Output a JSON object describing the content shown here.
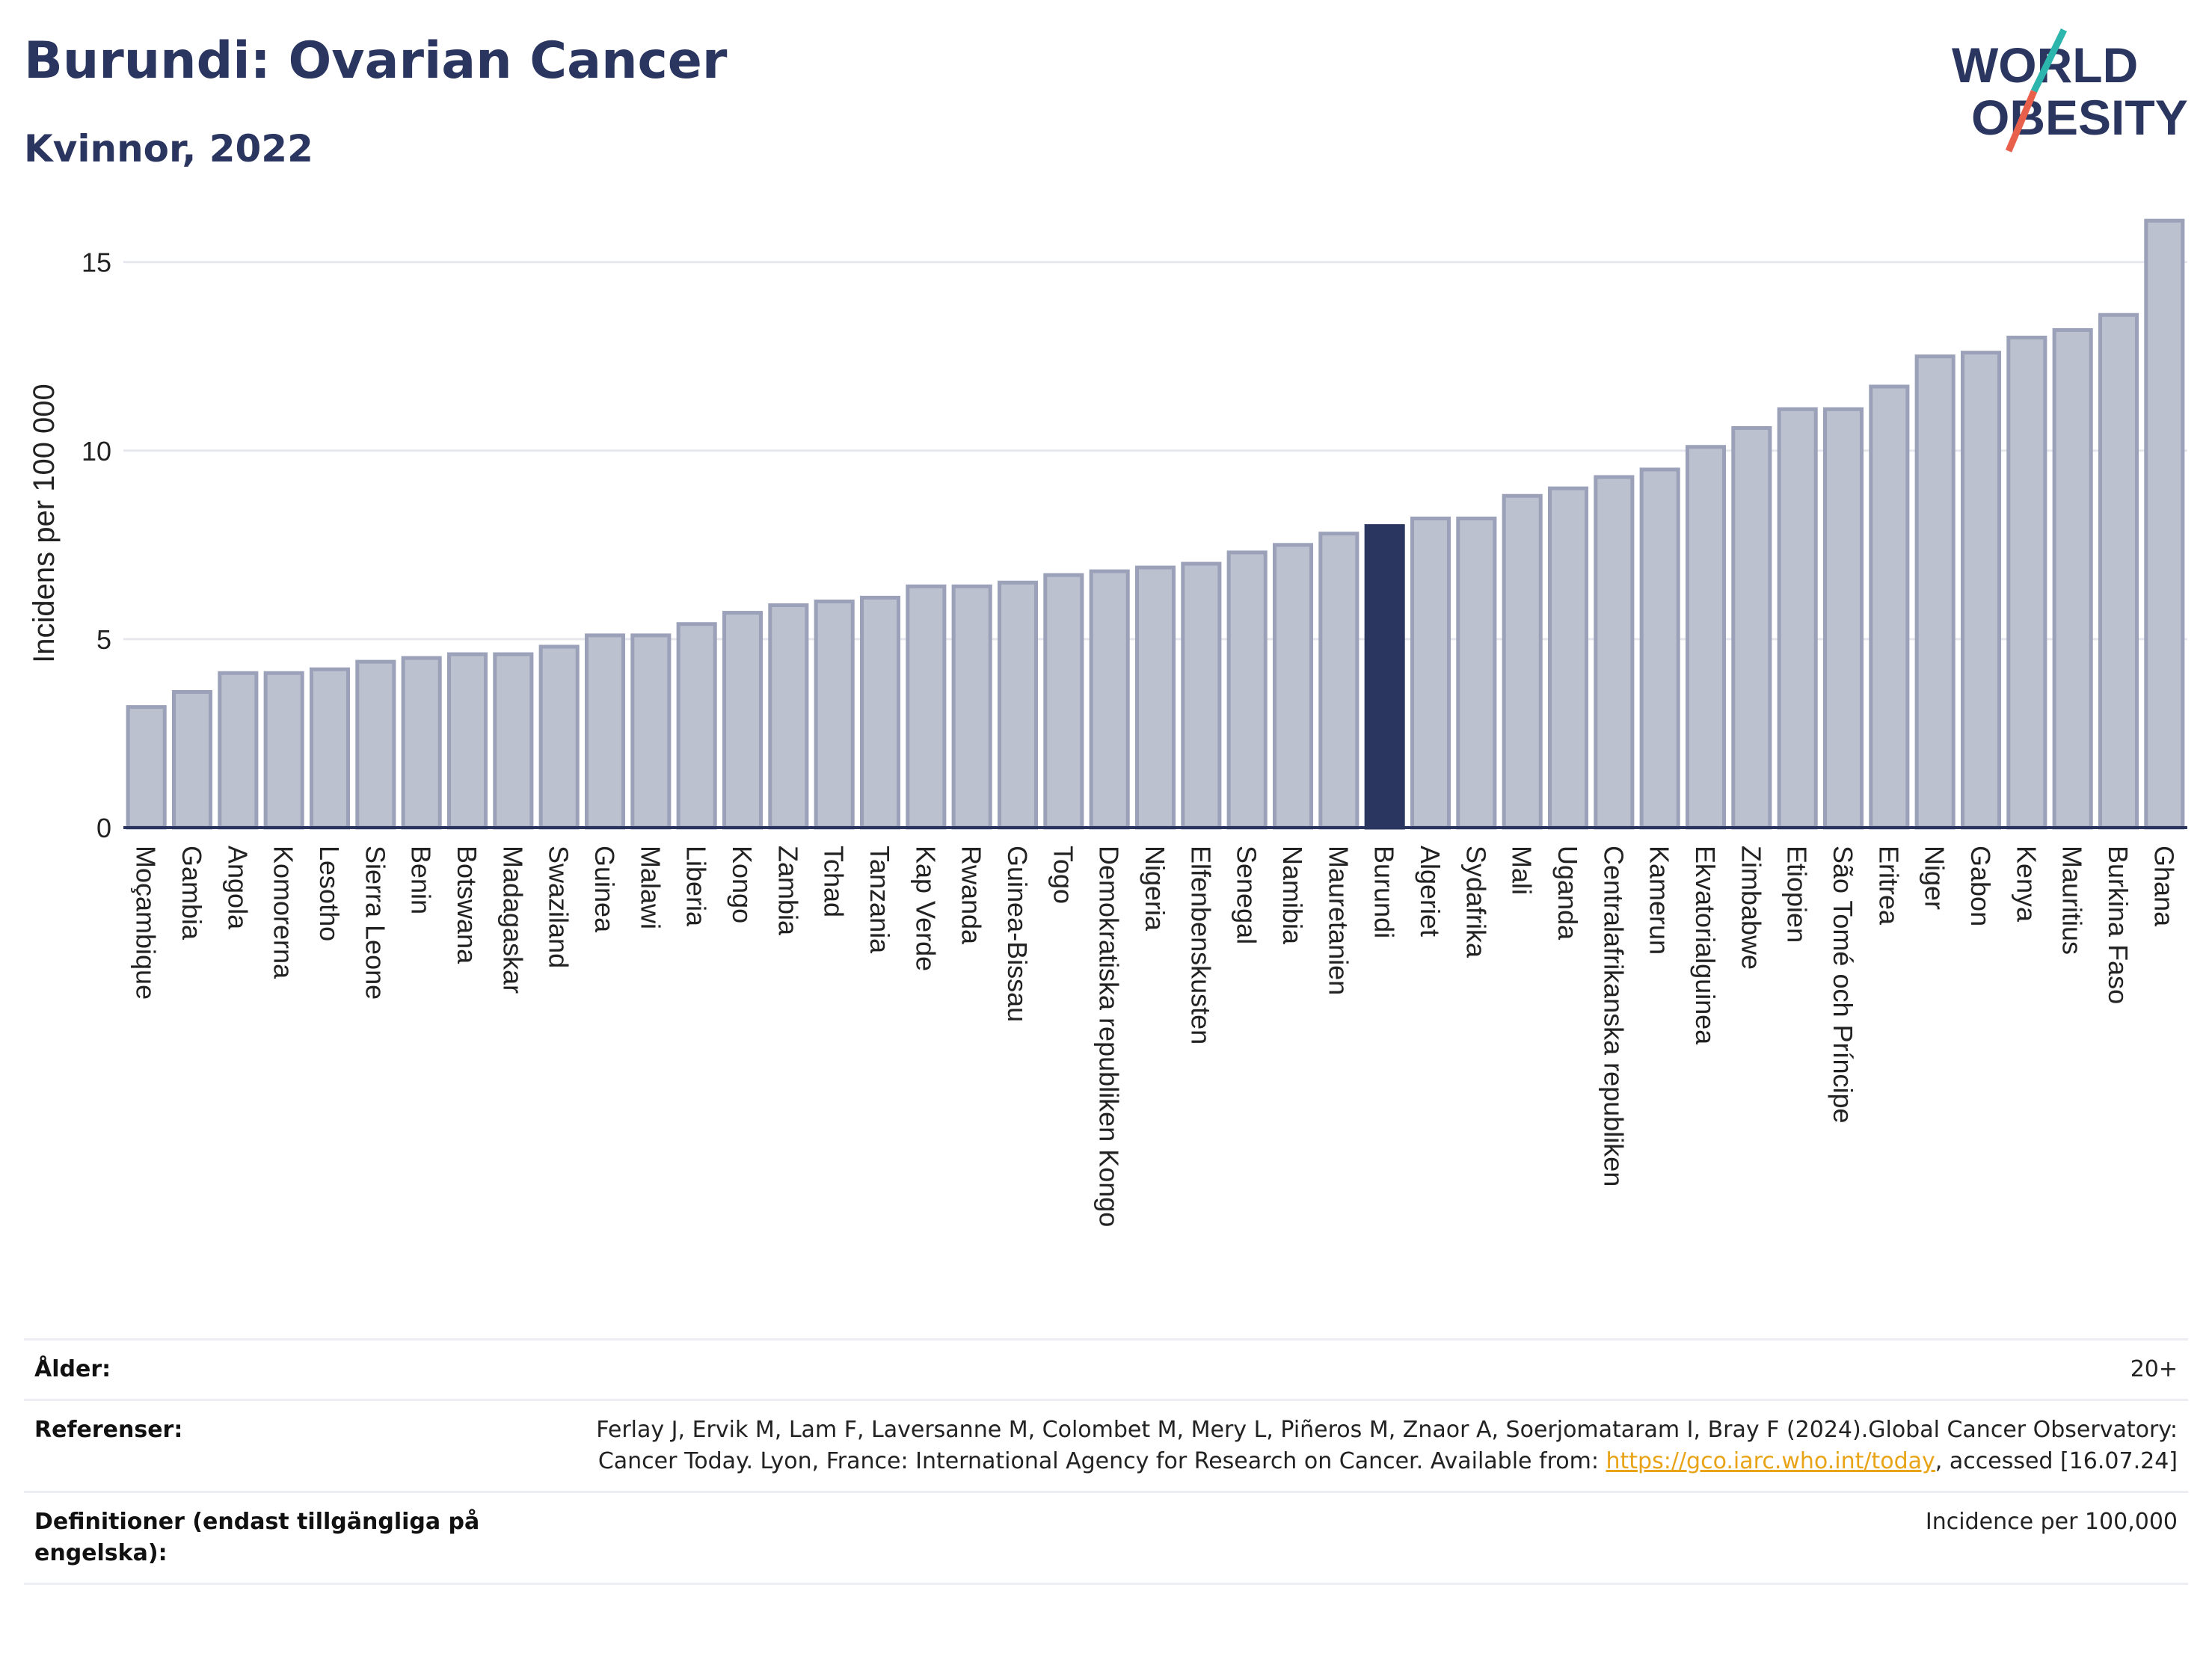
{
  "title": "Burundi: Ovarian Cancer",
  "subtitle": "Kvinnor, 2022",
  "logo": {
    "line1": "WORLD",
    "line2": "OBESITY",
    "colors": {
      "text": "#2b3660",
      "slash_top": "#2bb5ad",
      "slash_bottom": "#e8604c"
    }
  },
  "colors": {
    "bar": "#bcc1d0",
    "bar_border": "#9aa1b8",
    "highlight": "#2b3660",
    "grid": "#e6e8ee",
    "axis": "#2b3660"
  },
  "chart_data": {
    "type": "bar",
    "ylabel": "Incidens per 100 000",
    "ylim": [
      0,
      16.5
    ],
    "yticks": [
      0,
      5,
      10,
      15
    ],
    "highlight": "Burundi",
    "grid": true,
    "categories": [
      "Moçambique",
      "Gambia",
      "Angola",
      "Komorerna",
      "Lesotho",
      "Sierra Leone",
      "Benin",
      "Botswana",
      "Madagaskar",
      "Swaziland",
      "Guinea",
      "Malawi",
      "Liberia",
      "Kongo",
      "Zambia",
      "Tchad",
      "Tanzania",
      "Kap Verde",
      "Rwanda",
      "Guinea-Bissau",
      "Togo",
      "Demokratiska republiken Kongo",
      "Nigeria",
      "Elfenbenskusten",
      "Senegal",
      "Namibia",
      "Mauretanien",
      "Burundi",
      "Algeriet",
      "Sydafrika",
      "Mali",
      "Uganda",
      "Centralafrikanska republiken",
      "Kamerun",
      "Ekvatorialguinea",
      "Zimbabwe",
      "Etiopien",
      "São Tomé och Príncipe",
      "Eritrea",
      "Niger",
      "Gabon",
      "Kenya",
      "Mauritius",
      "Burkina Faso",
      "Ghana"
    ],
    "values": [
      3.2,
      3.6,
      4.1,
      4.1,
      4.2,
      4.4,
      4.5,
      4.6,
      4.6,
      4.8,
      5.1,
      5.1,
      5.4,
      5.7,
      5.9,
      6.0,
      6.1,
      6.4,
      6.4,
      6.5,
      6.7,
      6.8,
      6.9,
      7.0,
      7.3,
      7.5,
      7.8,
      8.0,
      8.2,
      8.2,
      8.8,
      9.0,
      9.3,
      9.5,
      10.1,
      10.6,
      11.1,
      11.1,
      11.7,
      12.5,
      12.6,
      13.0,
      13.2,
      13.6,
      16.1
    ]
  },
  "info": {
    "age_label": "Ålder:",
    "age_value": "20+",
    "ref_label": "Referenser:",
    "ref_text": "Ferlay J, Ervik M, Lam F, Laversanne M, Colombet M, Mery L, Piñeros M, Znaor A, Soerjomataram I, Bray F (2024).Global Cancer Observatory: Cancer Today. Lyon, France: International Agency for Research on Cancer. Available from: ",
    "ref_link": "https://gco.iarc.who.int/today",
    "ref_tail": ", accessed [16.07.24]",
    "def_label": "Definitioner (endast tillgängliga på engelska):",
    "def_value": "Incidence per 100,000"
  }
}
